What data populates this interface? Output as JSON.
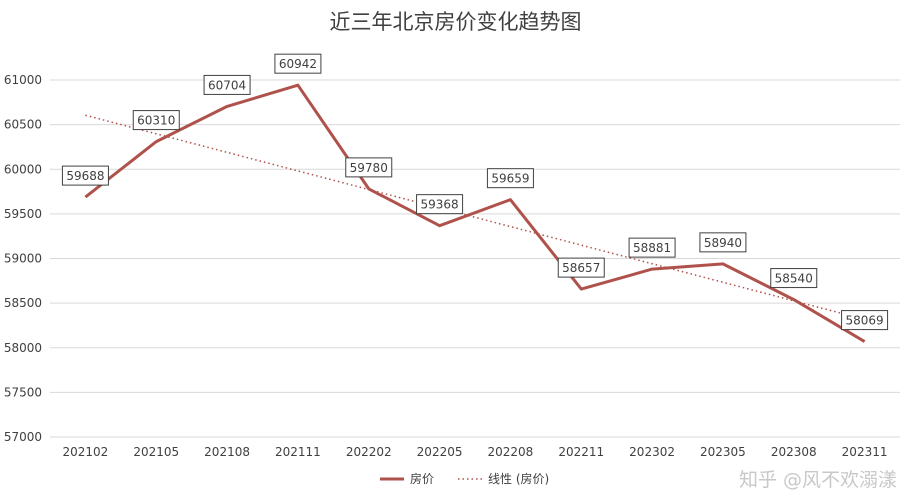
{
  "chart_data": {
    "type": "line",
    "title": "近三年北京房价变化趋势图",
    "categories": [
      "202102",
      "202105",
      "202108",
      "202111",
      "202202",
      "202205",
      "202208",
      "202211",
      "202302",
      "202305",
      "202308",
      "202311"
    ],
    "series": [
      {
        "name": "房价",
        "values": [
          59688,
          60310,
          60704,
          60942,
          59780,
          59368,
          59659,
          58657,
          58881,
          58940,
          58540,
          58069
        ],
        "color": "#b0524c"
      }
    ],
    "trendline": {
      "name": "线性 (房价)",
      "style": "dotted",
      "color": "#b0524c"
    },
    "ylim": [
      57000,
      61000
    ],
    "yticks": [
      57000,
      57500,
      58000,
      58500,
      59000,
      59500,
      60000,
      60500,
      61000
    ],
    "grid": true,
    "legend": "bottom",
    "data_labels": true
  },
  "watermark": "知乎 @风不欢溺漾"
}
